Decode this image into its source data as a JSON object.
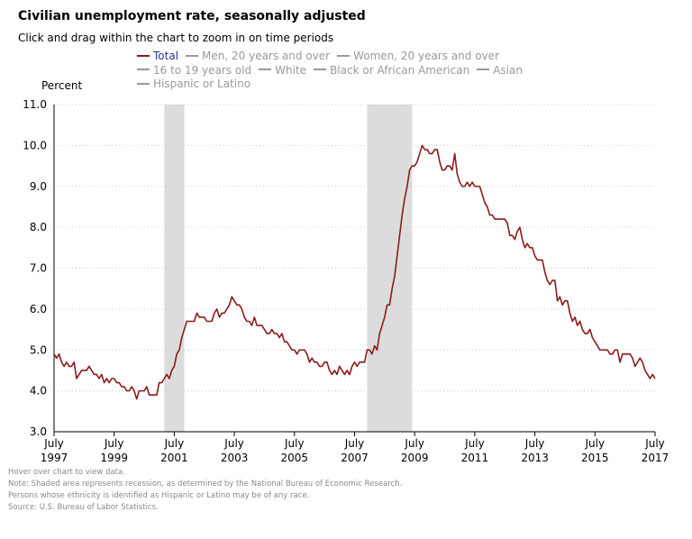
{
  "page": {
    "title": "Civilian unemployment rate, seasonally adjusted",
    "subtitle": "Click and drag within the chart to zoom in on time periods",
    "notes": [
      "Hover over chart to view data.",
      "Note: Shaded area represents recession, as determined by the National Bureau of Economic Research.",
      "Persons whose ethnicity is identified as Hispanic or Latino may be of any race.",
      "Source: U.S. Bureau of Labor Statistics."
    ]
  },
  "colors": {
    "total_line": "#8b1a1a",
    "active_legend_text": "#1f3a8a",
    "inactive_legend": "#999999",
    "recession_shade": "#dcdcdc",
    "grid": "#cccccc"
  },
  "legend": [
    {
      "label": "Total",
      "active": true
    },
    {
      "label": "Men, 20 years and over",
      "active": false
    },
    {
      "label": "Women, 20 years and over",
      "active": false
    },
    {
      "label": "16 to 19 years old",
      "active": false
    },
    {
      "label": "White",
      "active": false
    },
    {
      "label": "Black or African American",
      "active": false
    },
    {
      "label": "Asian",
      "active": false
    },
    {
      "label": "Hispanic or Latino",
      "active": false
    }
  ],
  "chart_data": {
    "type": "line",
    "ylabel": "Percent",
    "ylim": [
      3.0,
      11.0
    ],
    "yticks": [
      "3.0",
      "4.0",
      "5.0",
      "6.0",
      "7.0",
      "8.0",
      "9.0",
      "10.0",
      "11.0"
    ],
    "xlim": [
      "1997-07",
      "2017-07"
    ],
    "xticks": [
      {
        "month": "July",
        "year": "1997"
      },
      {
        "month": "July",
        "year": "1999"
      },
      {
        "month": "July",
        "year": "2001"
      },
      {
        "month": "July",
        "year": "2003"
      },
      {
        "month": "July",
        "year": "2005"
      },
      {
        "month": "July",
        "year": "2007"
      },
      {
        "month": "July",
        "year": "2009"
      },
      {
        "month": "July",
        "year": "2011"
      },
      {
        "month": "July",
        "year": "2013"
      },
      {
        "month": "July",
        "year": "2015"
      },
      {
        "month": "July",
        "year": "2017"
      }
    ],
    "grid": true,
    "recessions": [
      {
        "start": "2001-03",
        "end": "2001-11"
      },
      {
        "start": "2007-12",
        "end": "2009-06"
      }
    ],
    "series": [
      {
        "name": "Total",
        "points": [
          [
            "1997-07",
            4.9
          ],
          [
            "1997-08",
            4.8
          ],
          [
            "1997-09",
            4.9
          ],
          [
            "1997-10",
            4.7
          ],
          [
            "1997-11",
            4.6
          ],
          [
            "1997-12",
            4.7
          ],
          [
            "1998-01",
            4.6
          ],
          [
            "1998-02",
            4.6
          ],
          [
            "1998-03",
            4.7
          ],
          [
            "1998-04",
            4.3
          ],
          [
            "1998-05",
            4.4
          ],
          [
            "1998-06",
            4.5
          ],
          [
            "1998-07",
            4.5
          ],
          [
            "1998-08",
            4.5
          ],
          [
            "1998-09",
            4.6
          ],
          [
            "1998-10",
            4.5
          ],
          [
            "1998-11",
            4.4
          ],
          [
            "1998-12",
            4.4
          ],
          [
            "1999-01",
            4.3
          ],
          [
            "1999-02",
            4.4
          ],
          [
            "1999-03",
            4.2
          ],
          [
            "1999-04",
            4.3
          ],
          [
            "1999-05",
            4.2
          ],
          [
            "1999-06",
            4.3
          ],
          [
            "1999-07",
            4.3
          ],
          [
            "1999-08",
            4.2
          ],
          [
            "1999-09",
            4.2
          ],
          [
            "1999-10",
            4.1
          ],
          [
            "1999-11",
            4.1
          ],
          [
            "1999-12",
            4.0
          ],
          [
            "2000-01",
            4.0
          ],
          [
            "2000-02",
            4.1
          ],
          [
            "2000-03",
            4.0
          ],
          [
            "2000-04",
            3.8
          ],
          [
            "2000-05",
            4.0
          ],
          [
            "2000-06",
            4.0
          ],
          [
            "2000-07",
            4.0
          ],
          [
            "2000-08",
            4.1
          ],
          [
            "2000-09",
            3.9
          ],
          [
            "2000-10",
            3.9
          ],
          [
            "2000-11",
            3.9
          ],
          [
            "2000-12",
            3.9
          ],
          [
            "2001-01",
            4.2
          ],
          [
            "2001-02",
            4.2
          ],
          [
            "2001-03",
            4.3
          ],
          [
            "2001-04",
            4.4
          ],
          [
            "2001-05",
            4.3
          ],
          [
            "2001-06",
            4.5
          ],
          [
            "2001-07",
            4.6
          ],
          [
            "2001-08",
            4.9
          ],
          [
            "2001-09",
            5.0
          ],
          [
            "2001-10",
            5.3
          ],
          [
            "2001-11",
            5.5
          ],
          [
            "2001-12",
            5.7
          ],
          [
            "2002-01",
            5.7
          ],
          [
            "2002-02",
            5.7
          ],
          [
            "2002-03",
            5.7
          ],
          [
            "2002-04",
            5.9
          ],
          [
            "2002-05",
            5.8
          ],
          [
            "2002-06",
            5.8
          ],
          [
            "2002-07",
            5.8
          ],
          [
            "2002-08",
            5.7
          ],
          [
            "2002-09",
            5.7
          ],
          [
            "2002-10",
            5.7
          ],
          [
            "2002-11",
            5.9
          ],
          [
            "2002-12",
            6.0
          ],
          [
            "2003-01",
            5.8
          ],
          [
            "2003-02",
            5.9
          ],
          [
            "2003-03",
            5.9
          ],
          [
            "2003-04",
            6.0
          ],
          [
            "2003-05",
            6.1
          ],
          [
            "2003-06",
            6.3
          ],
          [
            "2003-07",
            6.2
          ],
          [
            "2003-08",
            6.1
          ],
          [
            "2003-09",
            6.1
          ],
          [
            "2003-10",
            6.0
          ],
          [
            "2003-11",
            5.8
          ],
          [
            "2003-12",
            5.7
          ],
          [
            "2004-01",
            5.7
          ],
          [
            "2004-02",
            5.6
          ],
          [
            "2004-03",
            5.8
          ],
          [
            "2004-04",
            5.6
          ],
          [
            "2004-05",
            5.6
          ],
          [
            "2004-06",
            5.6
          ],
          [
            "2004-07",
            5.5
          ],
          [
            "2004-08",
            5.4
          ],
          [
            "2004-09",
            5.4
          ],
          [
            "2004-10",
            5.5
          ],
          [
            "2004-11",
            5.4
          ],
          [
            "2004-12",
            5.4
          ],
          [
            "2005-01",
            5.3
          ],
          [
            "2005-02",
            5.4
          ],
          [
            "2005-03",
            5.2
          ],
          [
            "2005-04",
            5.2
          ],
          [
            "2005-05",
            5.1
          ],
          [
            "2005-06",
            5.0
          ],
          [
            "2005-07",
            5.0
          ],
          [
            "2005-08",
            4.9
          ],
          [
            "2005-09",
            5.0
          ],
          [
            "2005-10",
            5.0
          ],
          [
            "2005-11",
            5.0
          ],
          [
            "2005-12",
            4.9
          ],
          [
            "2006-01",
            4.7
          ],
          [
            "2006-02",
            4.8
          ],
          [
            "2006-03",
            4.7
          ],
          [
            "2006-04",
            4.7
          ],
          [
            "2006-05",
            4.6
          ],
          [
            "2006-06",
            4.6
          ],
          [
            "2006-07",
            4.7
          ],
          [
            "2006-08",
            4.7
          ],
          [
            "2006-09",
            4.5
          ],
          [
            "2006-10",
            4.4
          ],
          [
            "2006-11",
            4.5
          ],
          [
            "2006-12",
            4.4
          ],
          [
            "2007-01",
            4.6
          ],
          [
            "2007-02",
            4.5
          ],
          [
            "2007-03",
            4.4
          ],
          [
            "2007-04",
            4.5
          ],
          [
            "2007-05",
            4.4
          ],
          [
            "2007-06",
            4.6
          ],
          [
            "2007-07",
            4.7
          ],
          [
            "2007-08",
            4.6
          ],
          [
            "2007-09",
            4.7
          ],
          [
            "2007-10",
            4.7
          ],
          [
            "2007-11",
            4.7
          ],
          [
            "2007-12",
            5.0
          ],
          [
            "2008-01",
            5.0
          ],
          [
            "2008-02",
            4.9
          ],
          [
            "2008-03",
            5.1
          ],
          [
            "2008-04",
            5.0
          ],
          [
            "2008-05",
            5.4
          ],
          [
            "2008-06",
            5.6
          ],
          [
            "2008-07",
            5.8
          ],
          [
            "2008-08",
            6.1
          ],
          [
            "2008-09",
            6.1
          ],
          [
            "2008-10",
            6.5
          ],
          [
            "2008-11",
            6.8
          ],
          [
            "2008-12",
            7.3
          ],
          [
            "2009-01",
            7.8
          ],
          [
            "2009-02",
            8.3
          ],
          [
            "2009-03",
            8.7
          ],
          [
            "2009-04",
            9.0
          ],
          [
            "2009-05",
            9.4
          ],
          [
            "2009-06",
            9.5
          ],
          [
            "2009-07",
            9.5
          ],
          [
            "2009-08",
            9.6
          ],
          [
            "2009-09",
            9.8
          ],
          [
            "2009-10",
            10.0
          ],
          [
            "2009-11",
            9.9
          ],
          [
            "2009-12",
            9.9
          ],
          [
            "2010-01",
            9.8
          ],
          [
            "2010-02",
            9.8
          ],
          [
            "2010-03",
            9.9
          ],
          [
            "2010-04",
            9.9
          ],
          [
            "2010-05",
            9.6
          ],
          [
            "2010-06",
            9.4
          ],
          [
            "2010-07",
            9.4
          ],
          [
            "2010-08",
            9.5
          ],
          [
            "2010-09",
            9.5
          ],
          [
            "2010-10",
            9.4
          ],
          [
            "2010-11",
            9.8
          ],
          [
            "2010-12",
            9.3
          ],
          [
            "2011-01",
            9.1
          ],
          [
            "2011-02",
            9.0
          ],
          [
            "2011-03",
            9.0
          ],
          [
            "2011-04",
            9.1
          ],
          [
            "2011-05",
            9.0
          ],
          [
            "2011-06",
            9.1
          ],
          [
            "2011-07",
            9.0
          ],
          [
            "2011-08",
            9.0
          ],
          [
            "2011-09",
            9.0
          ],
          [
            "2011-10",
            8.8
          ],
          [
            "2011-11",
            8.6
          ],
          [
            "2011-12",
            8.5
          ],
          [
            "2012-01",
            8.3
          ],
          [
            "2012-02",
            8.3
          ],
          [
            "2012-03",
            8.2
          ],
          [
            "2012-04",
            8.2
          ],
          [
            "2012-05",
            8.2
          ],
          [
            "2012-06",
            8.2
          ],
          [
            "2012-07",
            8.2
          ],
          [
            "2012-08",
            8.1
          ],
          [
            "2012-09",
            7.8
          ],
          [
            "2012-10",
            7.8
          ],
          [
            "2012-11",
            7.7
          ],
          [
            "2012-12",
            7.9
          ],
          [
            "2013-01",
            8.0
          ],
          [
            "2013-02",
            7.7
          ],
          [
            "2013-03",
            7.5
          ],
          [
            "2013-04",
            7.6
          ],
          [
            "2013-05",
            7.5
          ],
          [
            "2013-06",
            7.5
          ],
          [
            "2013-07",
            7.3
          ],
          [
            "2013-08",
            7.2
          ],
          [
            "2013-09",
            7.2
          ],
          [
            "2013-10",
            7.2
          ],
          [
            "2013-11",
            6.9
          ],
          [
            "2013-12",
            6.7
          ],
          [
            "2014-01",
            6.6
          ],
          [
            "2014-02",
            6.7
          ],
          [
            "2014-03",
            6.7
          ],
          [
            "2014-04",
            6.2
          ],
          [
            "2014-05",
            6.3
          ],
          [
            "2014-06",
            6.1
          ],
          [
            "2014-07",
            6.2
          ],
          [
            "2014-08",
            6.2
          ],
          [
            "2014-09",
            5.9
          ],
          [
            "2014-10",
            5.7
          ],
          [
            "2014-11",
            5.8
          ],
          [
            "2014-12",
            5.6
          ],
          [
            "2015-01",
            5.7
          ],
          [
            "2015-02",
            5.5
          ],
          [
            "2015-03",
            5.4
          ],
          [
            "2015-04",
            5.4
          ],
          [
            "2015-05",
            5.5
          ],
          [
            "2015-06",
            5.3
          ],
          [
            "2015-07",
            5.2
          ],
          [
            "2015-08",
            5.1
          ],
          [
            "2015-09",
            5.0
          ],
          [
            "2015-10",
            5.0
          ],
          [
            "2015-11",
            5.0
          ],
          [
            "2015-12",
            5.0
          ],
          [
            "2016-01",
            4.9
          ],
          [
            "2016-02",
            4.9
          ],
          [
            "2016-03",
            5.0
          ],
          [
            "2016-04",
            5.0
          ],
          [
            "2016-05",
            4.7
          ],
          [
            "2016-06",
            4.9
          ],
          [
            "2016-07",
            4.9
          ],
          [
            "2016-08",
            4.9
          ],
          [
            "2016-09",
            4.9
          ],
          [
            "2016-10",
            4.8
          ],
          [
            "2016-11",
            4.6
          ],
          [
            "2016-12",
            4.7
          ],
          [
            "2017-01",
            4.8
          ],
          [
            "2017-02",
            4.7
          ],
          [
            "2017-03",
            4.5
          ],
          [
            "2017-04",
            4.4
          ],
          [
            "2017-05",
            4.3
          ],
          [
            "2017-06",
            4.4
          ],
          [
            "2017-07",
            4.3
          ]
        ]
      }
    ]
  }
}
